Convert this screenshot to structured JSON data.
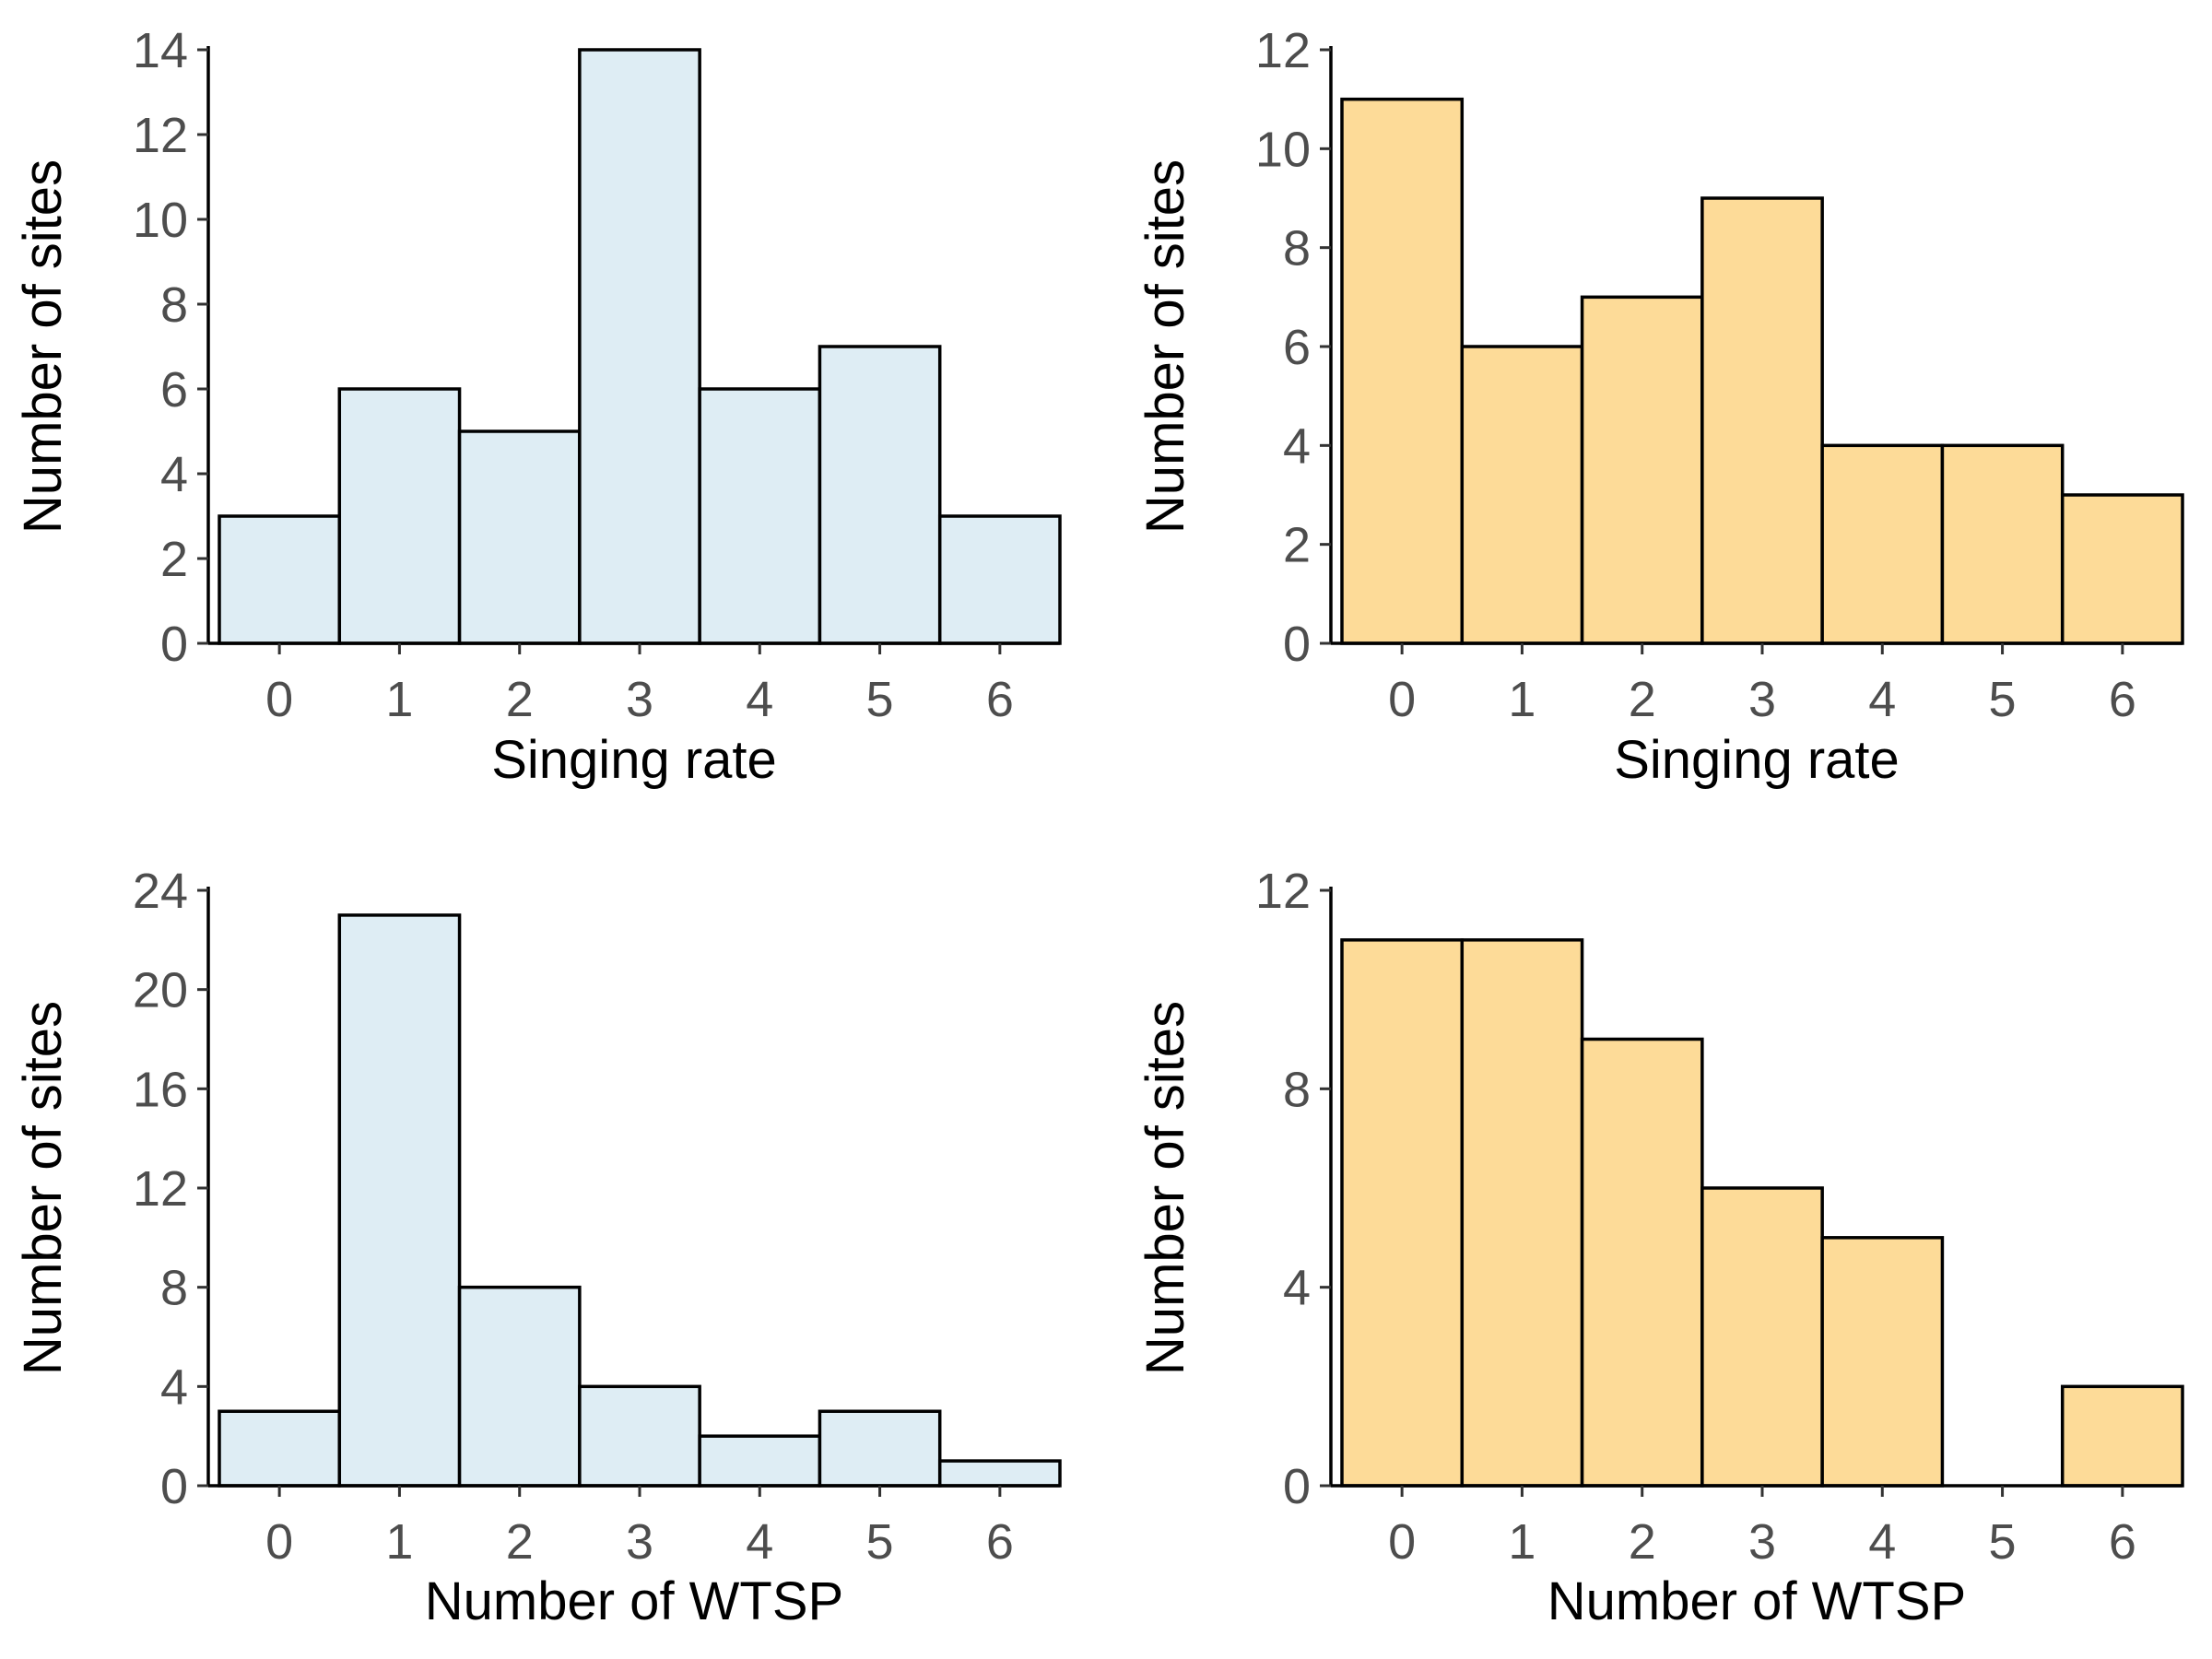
{
  "chart_data": [
    {
      "type": "bar",
      "categories": [
        "0",
        "1",
        "2",
        "3",
        "4",
        "5",
        "6"
      ],
      "values": [
        3,
        6,
        5,
        14,
        6,
        7,
        3
      ],
      "xlabel": "Singing rate",
      "ylabel": "Number of sites",
      "ylim": [
        0,
        14
      ],
      "yticks": [
        "0",
        "2",
        "4",
        "6",
        "8",
        "10",
        "12",
        "14"
      ],
      "fill_color": "#deedf4",
      "grid": false
    },
    {
      "type": "bar",
      "categories": [
        "0",
        "1",
        "2",
        "3",
        "4",
        "5",
        "6"
      ],
      "values": [
        11,
        6,
        7,
        9,
        4,
        4,
        3
      ],
      "xlabel": "Singing rate",
      "ylabel": "Number of sites",
      "ylim": [
        0,
        12
      ],
      "yticks": [
        "0",
        "2",
        "4",
        "6",
        "8",
        "10",
        "12"
      ],
      "fill_color": "#fddb98",
      "grid": false
    },
    {
      "type": "bar",
      "categories": [
        "0",
        "1",
        "2",
        "3",
        "4",
        "5",
        "6"
      ],
      "values": [
        3,
        23,
        8,
        4,
        2,
        3,
        1
      ],
      "xlabel": "Number of WTSP",
      "ylabel": "Number of sites",
      "ylim": [
        0,
        24
      ],
      "yticks": [
        "0",
        "4",
        "8",
        "12",
        "16",
        "20",
        "24"
      ],
      "fill_color": "#deedf4",
      "grid": false
    },
    {
      "type": "bar",
      "categories": [
        "0",
        "1",
        "2",
        "3",
        "4",
        "5",
        "6"
      ],
      "values": [
        11,
        11,
        9,
        6,
        5,
        0,
        2
      ],
      "xlabel": "Number of WTSP",
      "ylabel": "Number of sites",
      "ylim": [
        0,
        12
      ],
      "yticks": [
        "0",
        "4",
        "8",
        "12"
      ],
      "fill_color": "#fddb98",
      "grid": false
    }
  ]
}
